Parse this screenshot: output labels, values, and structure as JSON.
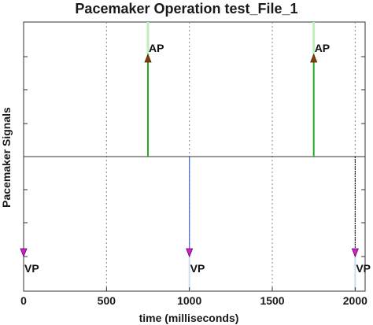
{
  "chart_data": {
    "type": "line",
    "title": "Pacemaker Operation test_File_1",
    "xlabel": "time (milliseconds)",
    "ylabel": "Pacemaker Signals",
    "xlim": [
      0,
      2060
    ],
    "x_ticks": [
      0,
      500,
      1000,
      1500,
      2000
    ],
    "x_tick_labels": [
      "0",
      "500",
      "1000",
      "1500",
      "2000"
    ],
    "grid": {
      "vertical_dotted": true,
      "horizontal": false
    },
    "baseline": 0,
    "events": [
      {
        "label": "AP",
        "time": 750,
        "kind": "atrial",
        "direction": "up",
        "color": "#22aa22",
        "marker_color": "#8b3a0f"
      },
      {
        "label": "AP",
        "time": 1750,
        "kind": "atrial",
        "direction": "up",
        "color": "#22aa22",
        "marker_color": "#8b3a0f"
      },
      {
        "label": "VP",
        "time": 0,
        "kind": "ventricular",
        "direction": "down",
        "color": "#4466cc",
        "marker_color": "#cc22cc"
      },
      {
        "label": "VP",
        "time": 1000,
        "kind": "ventricular",
        "direction": "down",
        "color": "#4466cc",
        "marker_color": "#cc22cc"
      },
      {
        "label": "VP",
        "time": 2000,
        "kind": "ventricular",
        "direction": "down",
        "color": "#222222",
        "marker_color": "#cc22cc"
      }
    ]
  }
}
